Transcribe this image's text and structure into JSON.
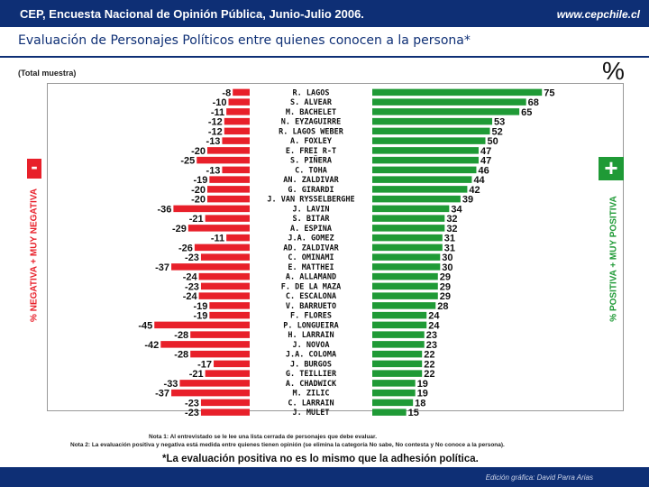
{
  "header": {
    "title": "CEP, Encuesta Nacional de Opinión Pública, Junio-Julio 2006.",
    "site": "www.cepchile.cl"
  },
  "subtitle": "Evaluación de Personajes Políticos entre quienes conocen a la persona*",
  "sample": "(Total muestra)",
  "percent_sign": "%",
  "minus_sign": "-",
  "plus_sign": "+",
  "left_axis_label": "% NEGATIVA + MUY NEGATIVA",
  "right_axis_label": "% POSITIVA + MUY POSITIVA",
  "notes": [
    "Nota 1: Al entrevistado se le lee una lista cerrada de personajes que debe evaluar.",
    "Nota 2: La evaluación positiva y negativa está medida entre quienes tienen opinión (se elimina la categoría No sabe, No contesta y No conoce a la persona)."
  ],
  "footer": "*La evaluación positiva no es lo mismo que la adhesión política.",
  "credit": "Edición gráfica: David Parra Arias",
  "colors": {
    "header": "#0e2f75",
    "negative": "#e8202a",
    "positive": "#1f9a36"
  },
  "chart_data": {
    "type": "bar",
    "orientation": "horizontal-diverging",
    "categories": [
      "R. LAGOS",
      "S. ALVEAR",
      "M. BACHELET",
      "N. EYZAGUIRRE",
      "R. LAGOS WEBER",
      "A. FOXLEY",
      "E. FREI R-T",
      "S. PIÑERA",
      "C. TOHA",
      "AN. ZALDIVAR",
      "G. GIRARDI",
      "J. VAN RYSSELBERGHE",
      "J. LAVIN",
      "S. BITAR",
      "A. ESPINA",
      "J.A. GOMEZ",
      "AD. ZALDIVAR",
      "C. OMINAMI",
      "E. MATTHEI",
      "A. ALLAMAND",
      "F. DE LA MAZA",
      "C. ESCALONA",
      "V. BARRUETO",
      "F. FLORES",
      "P. LONGUEIRA",
      "H. LARRAIN",
      "J. NOVOA",
      "J.A. COLOMA",
      "J. BURGOS",
      "G. TEILLIER",
      "A. CHADWICK",
      "M. ZILIC",
      "C. LARRAIN",
      "J. MULET"
    ],
    "series": [
      {
        "key": "negativa",
        "values": [
          -8,
          -10,
          -11,
          -12,
          -12,
          -13,
          -20,
          -25,
          -13,
          -19,
          -20,
          -20,
          -36,
          -21,
          -29,
          -11,
          -26,
          -23,
          -37,
          -24,
          -23,
          -24,
          -19,
          -19,
          -45,
          -28,
          -42,
          -28,
          -17,
          -21,
          -33,
          -37,
          -23,
          -23
        ]
      },
      {
        "key": "positiva",
        "values": [
          75,
          68,
          65,
          53,
          52,
          50,
          47,
          47,
          46,
          44,
          42,
          39,
          34,
          32,
          32,
          31,
          31,
          30,
          30,
          29,
          29,
          29,
          28,
          24,
          24,
          23,
          23,
          22,
          22,
          22,
          19,
          19,
          18,
          15
        ]
      }
    ]
  }
}
